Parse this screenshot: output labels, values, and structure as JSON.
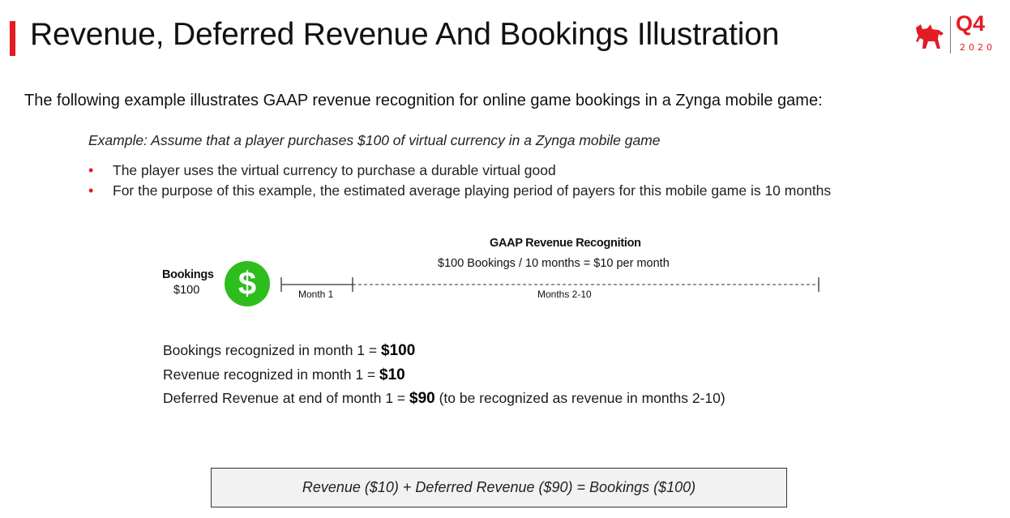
{
  "header": {
    "title": "Revenue, Deferred Revenue And Bookings Illustration",
    "logo": {
      "quarter": "Q4",
      "year": "2020",
      "icon": "zynga-dog-icon"
    },
    "accent_color": "#e31b23"
  },
  "intro": "The following example illustrates GAAP revenue recognition for online game bookings in a Zynga mobile game:",
  "example": "Example: Assume that a player purchases $100 of virtual currency in a Zynga mobile game",
  "bullets": [
    "The player uses the virtual currency to purchase a durable virtual good",
    "For the purpose of this example, the estimated average playing period of payers for this mobile game is 10 months"
  ],
  "diagram": {
    "gaap_title": "GAAP Revenue Recognition",
    "gaap_formula": "$100 Bookings / 10 months = $10 per month",
    "bookings_label": "Bookings",
    "bookings_amount": "$100",
    "dollar_icon": "$",
    "month1_label": "Month 1",
    "months_label": "Months 2-10",
    "icon_color": "#2dbe1e"
  },
  "results": [
    {
      "text": "Bookings recognized in month 1 = ",
      "value": "$100",
      "suffix": ""
    },
    {
      "text": "Revenue recognized in month 1 = ",
      "value": "$10",
      "suffix": ""
    },
    {
      "text": "Deferred Revenue at end of month 1 = ",
      "value": "$90",
      "suffix": " (to be recognized as revenue in months 2-10)"
    }
  ],
  "equation": "Revenue ($10) + Deferred Revenue ($90) = Bookings ($100)"
}
